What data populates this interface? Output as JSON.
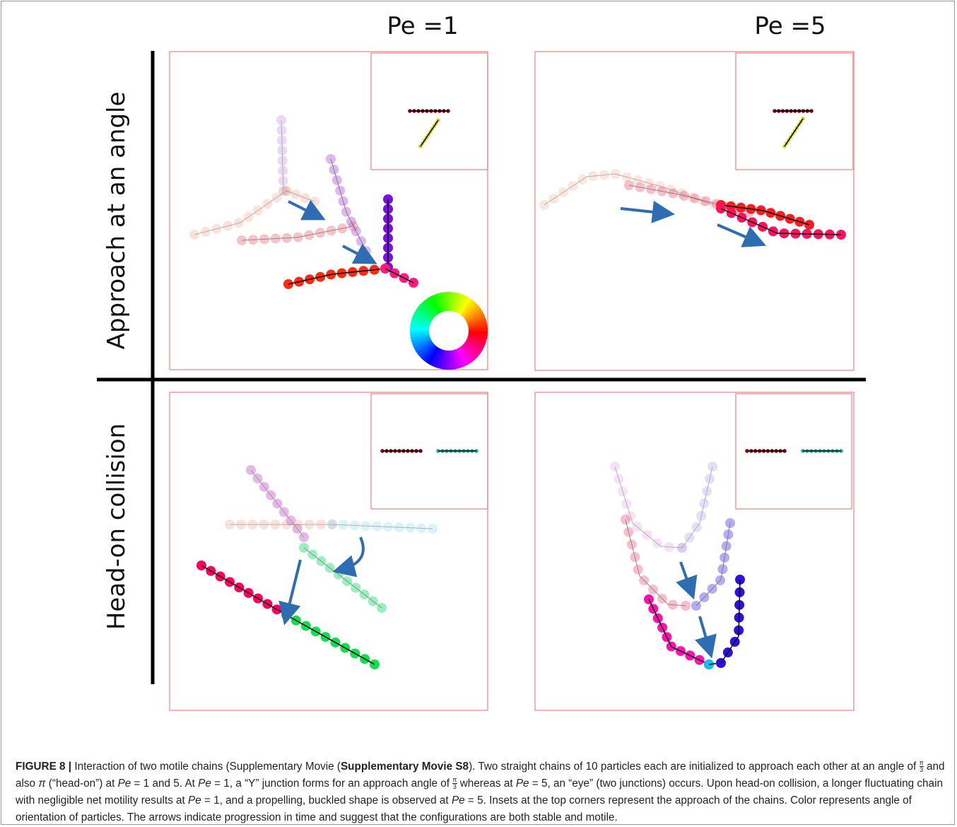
{
  "figure": {
    "column_headers": [
      "Pe =1",
      "Pe =5"
    ],
    "row_labels": [
      "Approach at an angle",
      "Head-on collision"
    ]
  },
  "caption": {
    "parts": [
      "FIGURE 8 |",
      " Interaction of two motile chains (Supplementary Movie (",
      "Supplementary Movie S8",
      "). Two straight chains of 10 particles each are initialized to approach each other at an angle of ",
      "π",
      "3",
      " and also ",
      "π",
      " (“head-on”) at ",
      "Pe",
      " = 1 and 5. At ",
      "Pe",
      " = 1, a “Y” junction forms for an approach angle of ",
      "π",
      "3",
      " whereas at ",
      "Pe",
      " = 5, an “eye” (two junctions) occurs. Upon head-on collision, a longer fluctuating chain with negligible net motility results at ",
      "Pe",
      " = 1, and a propelling, buckled shape is observed at ",
      "Pe",
      " = 5. Insets at the top corners represent the approach of the chains. Color represents angle of orientation of particles. The arrows indicate progression in time and suggest that the configurations are both stable and motile."
    ]
  }
}
